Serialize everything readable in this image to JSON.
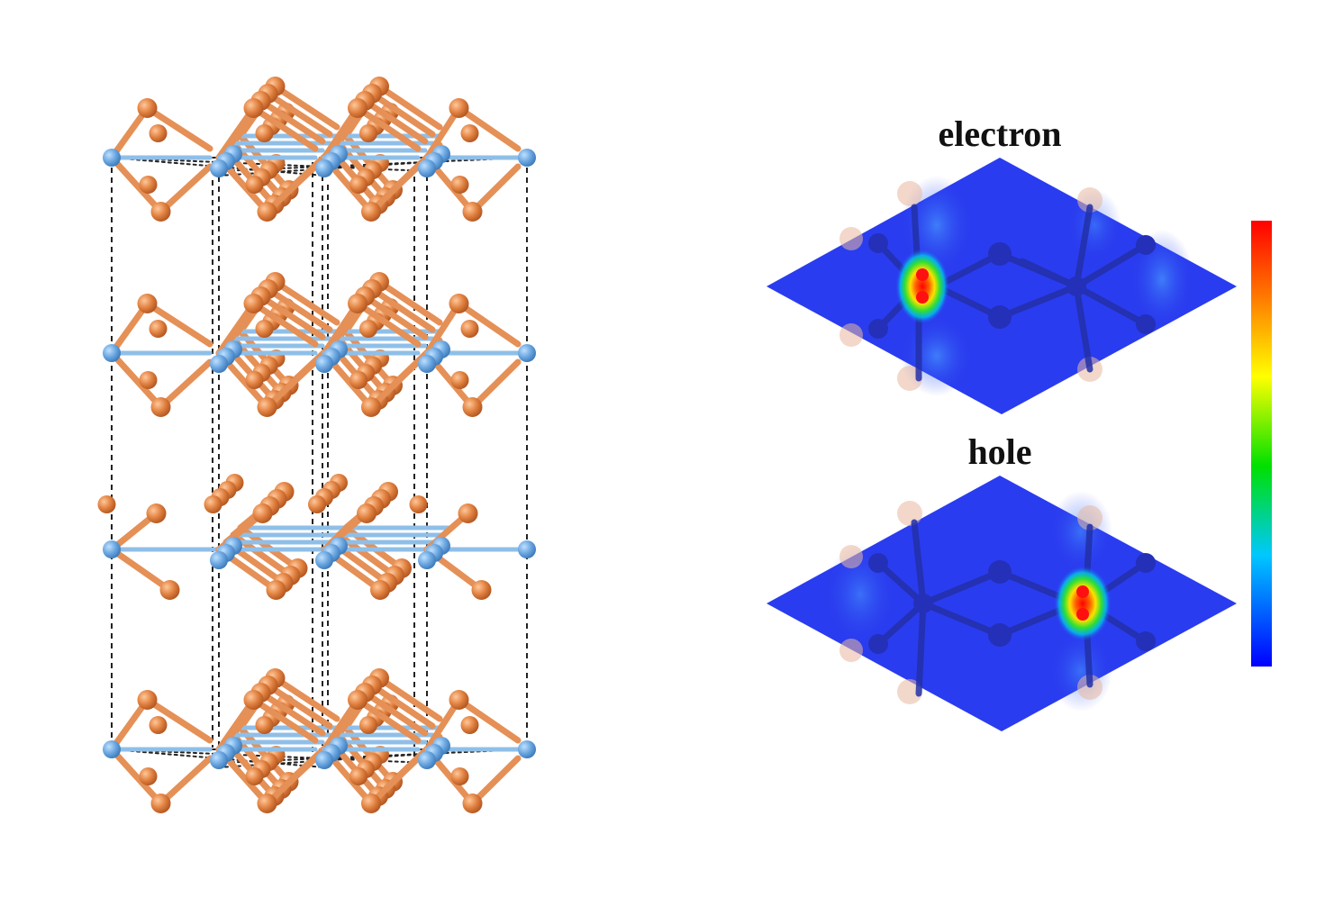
{
  "figure": {
    "electron_label": "electron",
    "hole_label": "hole"
  },
  "colors": {
    "background": "#ffffff",
    "atom_blue": "#6aa6e0",
    "atom_orange": "#e0803f",
    "bond_blue": "#8fbfe8",
    "bond_orange": "#e59056",
    "cell_edge": "#222222",
    "map_base": "#2a3cef",
    "map_bond": "#2230a8",
    "colorbar": [
      "#0000ff",
      "#00c8ff",
      "#00e000",
      "#ffff00",
      "#ff8000",
      "#ff0000"
    ]
  },
  "icons": {
    "crystal": "layered-crystal-structure-icon",
    "map": "charge-density-map-icon",
    "colorbar": "colorbar-gradient-icon"
  }
}
